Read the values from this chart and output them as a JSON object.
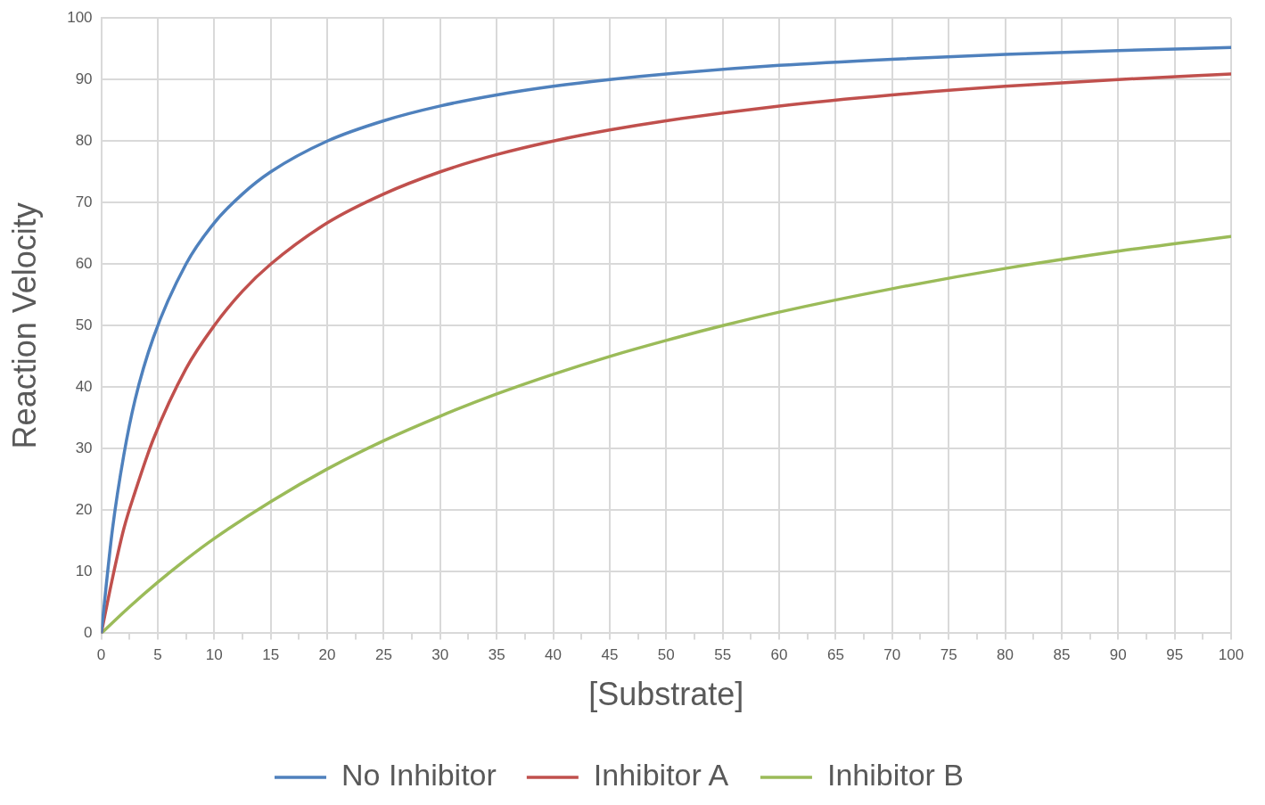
{
  "chart_data": {
    "type": "line",
    "xlabel": "[Substrate]",
    "ylabel": "Reaction Velocity",
    "series": [
      {
        "name": "No Inhibitor",
        "color": "#4f81bd",
        "x": [
          0,
          1,
          2,
          3,
          4.6,
          7.5,
          10,
          12.5,
          15,
          20,
          25,
          30,
          35,
          40,
          45,
          50,
          60,
          70,
          80,
          90,
          100
        ],
        "values": [
          0,
          17,
          29,
          38,
          48,
          60,
          66.7,
          71.4,
          75,
          80,
          83.3,
          85.7,
          87.5,
          88.9,
          90,
          90.9,
          92.3,
          93.3,
          94.1,
          94.7,
          95.2
        ]
      },
      {
        "name": "Inhibitor A",
        "color": "#c0504d",
        "x": [
          0,
          1,
          2,
          3,
          4.6,
          7.5,
          10,
          12.5,
          15,
          20,
          25,
          30,
          35,
          40,
          45,
          50,
          60,
          70,
          80,
          90,
          100
        ],
        "values": [
          0,
          9,
          17,
          23,
          31.5,
          43,
          50,
          55.6,
          60,
          66.7,
          71.4,
          75,
          77.8,
          80,
          81.8,
          83.3,
          85.7,
          87.5,
          88.9,
          90,
          90.9
        ]
      },
      {
        "name": "Inhibitor B",
        "color": "#9bbb59",
        "x": [
          0,
          2.5,
          5,
          7.5,
          10,
          15,
          20,
          25,
          30,
          35,
          40,
          45,
          50,
          55,
          60,
          70,
          80,
          90,
          100
        ],
        "values": [
          0,
          4.3,
          8.3,
          12,
          15.4,
          21.4,
          26.7,
          31.3,
          35.3,
          38.9,
          42.1,
          45,
          47.6,
          50,
          52.2,
          56,
          59.3,
          62.1,
          64.5
        ]
      }
    ],
    "xlim": [
      0,
      100
    ],
    "xticks": [
      0,
      {
        "value": 2.5,
        "label": null
      },
      5,
      {
        "value": 7.5,
        "label": null
      },
      10,
      {
        "value": 12.5,
        "label": null
      },
      15,
      {
        "value": 17.5,
        "label": null
      },
      20,
      {
        "value": 22.5,
        "label": null
      },
      25,
      {
        "value": 27.5,
        "label": null
      },
      30,
      {
        "value": 32.5,
        "label": null
      },
      35,
      {
        "value": 37.5,
        "label": null
      },
      40,
      {
        "value": 42.5,
        "label": null
      },
      45,
      {
        "value": 47.5,
        "label": null
      },
      50,
      {
        "value": 52.5,
        "label": null
      },
      55,
      {
        "value": 57.5,
        "label": null
      },
      60,
      {
        "value": 62.5,
        "label": null
      },
      65,
      {
        "value": 67.5,
        "label": null
      },
      70,
      {
        "value": 72.5,
        "label": null
      },
      75,
      {
        "value": 77.5,
        "label": null
      },
      80,
      {
        "value": 82.5,
        "label": null
      },
      85,
      {
        "value": 87.5,
        "label": null
      },
      90,
      {
        "value": 92.5,
        "label": null
      },
      95,
      {
        "value": 97.5,
        "label": null
      },
      100
    ],
    "ylim": [
      0,
      100
    ],
    "yticks": [
      0,
      10,
      20,
      30,
      40,
      50,
      60,
      70,
      80,
      90,
      100
    ],
    "grid": true,
    "legend": "bottom",
    "marker": "none",
    "line_style": "solid"
  }
}
